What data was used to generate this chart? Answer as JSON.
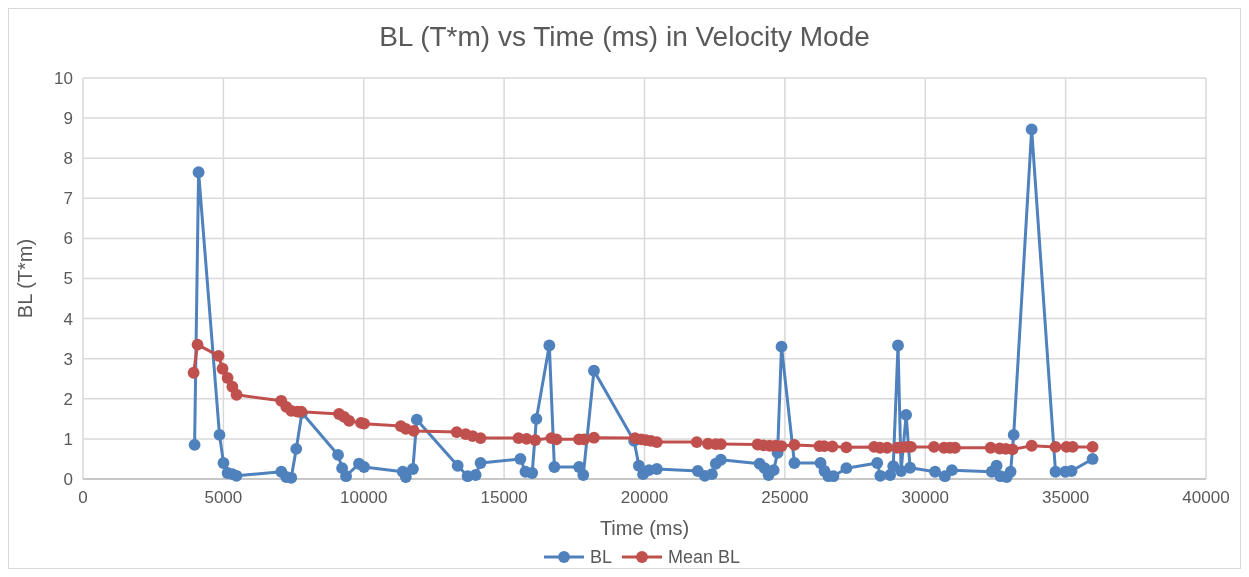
{
  "chart_data": {
    "type": "line",
    "title": "BL (T*m) vs Time (ms) in Velocity Mode",
    "xlabel": "Time (ms)",
    "ylabel": "BL (T*m)",
    "xlim": [
      0,
      40000
    ],
    "xticks": [
      0,
      5000,
      10000,
      15000,
      20000,
      25000,
      30000,
      35000,
      40000
    ],
    "ylim": [
      0,
      10
    ],
    "yticks": [
      0,
      1,
      2,
      3,
      4,
      5,
      6,
      7,
      8,
      9,
      10
    ],
    "grid": true,
    "legend": "bottom",
    "marker": "circle",
    "line_style": "solid",
    "series": [
      {
        "name": "BL",
        "color": "#4f81bd",
        "x": [
          3975,
          4117,
          4862,
          5004,
          5150,
          5320,
          5466,
          7063,
          7240,
          7418,
          7595,
          7800,
          9085,
          9230,
          9370,
          9830,
          10010,
          11390,
          11500,
          11750,
          11890,
          13345,
          13700,
          13985,
          14160,
          15580,
          15760,
          16000,
          16150,
          16610,
          16790,
          17670,
          17820,
          18200,
          19630,
          19800,
          19950,
          20160,
          20440,
          21900,
          22150,
          22400,
          22540,
          22720,
          24100,
          24280,
          24420,
          24600,
          24740,
          24880,
          25340,
          26270,
          26410,
          26550,
          26730,
          27190,
          28290,
          28400,
          28750,
          28860,
          29030,
          29140,
          29320,
          29460,
          30350,
          30700,
          30950,
          32370,
          32540,
          32680,
          32900,
          33040,
          33150,
          33790,
          34640,
          34990,
          35210,
          35960
        ],
        "values": [
          0.85,
          7.65,
          1.1,
          0.4,
          0.15,
          0.12,
          0.08,
          0.18,
          0.05,
          0.03,
          0.75,
          1.65,
          0.6,
          0.27,
          0.07,
          0.38,
          0.3,
          0.18,
          0.05,
          0.25,
          1.48,
          0.33,
          0.07,
          0.1,
          0.4,
          0.5,
          0.18,
          0.15,
          1.5,
          3.33,
          0.3,
          0.3,
          0.1,
          2.7,
          0.95,
          0.33,
          0.12,
          0.22,
          0.25,
          0.2,
          0.08,
          0.12,
          0.38,
          0.48,
          0.38,
          0.27,
          0.1,
          0.22,
          0.65,
          3.3,
          0.4,
          0.4,
          0.2,
          0.07,
          0.07,
          0.27,
          0.4,
          0.08,
          0.1,
          0.32,
          3.33,
          0.2,
          1.6,
          0.28,
          0.18,
          0.07,
          0.22,
          0.18,
          0.33,
          0.07,
          0.05,
          0.18,
          1.1,
          8.72,
          0.18,
          0.18,
          0.2,
          0.5
        ]
      },
      {
        "name": "Mean BL",
        "color": "#c0504d",
        "x": [
          3940,
          4080,
          4830,
          4970,
          5150,
          5320,
          5470,
          7060,
          7240,
          7420,
          7630,
          7770,
          9120,
          9300,
          9480,
          9900,
          10010,
          11320,
          11500,
          11780,
          13310,
          13630,
          13880,
          14160,
          15510,
          15800,
          16110,
          16680,
          16860,
          17670,
          17850,
          18200,
          19660,
          19880,
          20050,
          20230,
          20440,
          21860,
          22260,
          22540,
          22720,
          24030,
          24240,
          24460,
          24670,
          24880,
          25340,
          26230,
          26400,
          26690,
          27190,
          28180,
          28390,
          28640,
          29000,
          29170,
          29350,
          29490,
          30310,
          30670,
          30880,
          31060,
          32330,
          32650,
          32870,
          33110,
          33790,
          34640,
          35030,
          35250,
          35960
        ],
        "values": [
          2.65,
          3.35,
          3.07,
          2.75,
          2.52,
          2.3,
          2.1,
          1.95,
          1.8,
          1.7,
          1.68,
          1.68,
          1.62,
          1.55,
          1.45,
          1.4,
          1.38,
          1.32,
          1.25,
          1.2,
          1.17,
          1.12,
          1.07,
          1.02,
          1.02,
          1.0,
          0.97,
          1.02,
          0.99,
          0.99,
          0.99,
          1.03,
          1.02,
          0.99,
          0.97,
          0.95,
          0.92,
          0.92,
          0.88,
          0.87,
          0.87,
          0.86,
          0.84,
          0.83,
          0.83,
          0.82,
          0.85,
          0.82,
          0.82,
          0.81,
          0.79,
          0.8,
          0.78,
          0.78,
          0.78,
          0.79,
          0.8,
          0.8,
          0.8,
          0.78,
          0.78,
          0.78,
          0.78,
          0.76,
          0.75,
          0.74,
          0.83,
          0.8,
          0.8,
          0.8,
          0.8
        ]
      }
    ]
  }
}
